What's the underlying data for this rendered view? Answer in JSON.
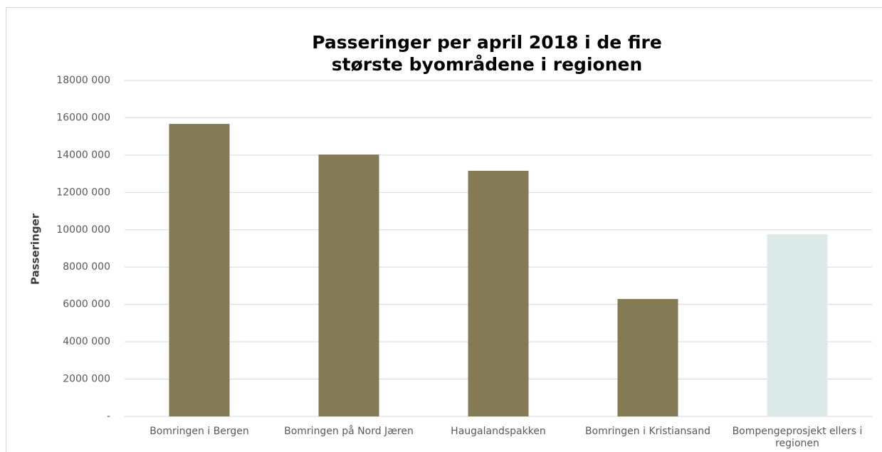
{
  "chart_data": {
    "type": "bar",
    "title": "Passeringer per april 2018 i de fire største byområdene i regionen",
    "y_label": "Passeringer",
    "categories": [
      "Bomringen i Bergen",
      "Bomringen på Nord Jæren",
      "Haugalandspakken",
      "Bomringen i Kristiansand",
      "Bompengeprosjekt ellers i regionen"
    ],
    "values": [
      15670000,
      14030000,
      13160000,
      6290000,
      9760000
    ],
    "colors": [
      "#847a56",
      "#847a56",
      "#847a56",
      "#847a56",
      "#dcebea"
    ],
    "ylim": [
      0,
      18000000
    ],
    "yticks": [
      {
        "value": 0,
        "label": "-"
      },
      {
        "value": 2000000,
        "label": "2000 000"
      },
      {
        "value": 4000000,
        "label": "4000 000"
      },
      {
        "value": 6000000,
        "label": "6000 000"
      },
      {
        "value": 8000000,
        "label": "8000 000"
      },
      {
        "value": 10000000,
        "label": "10000 000"
      },
      {
        "value": 12000000,
        "label": "12000 000"
      },
      {
        "value": 14000000,
        "label": "14000 000"
      },
      {
        "value": 16000000,
        "label": "16000 000"
      },
      {
        "value": 18000000,
        "label": "18000 000"
      }
    ],
    "grid": true
  }
}
